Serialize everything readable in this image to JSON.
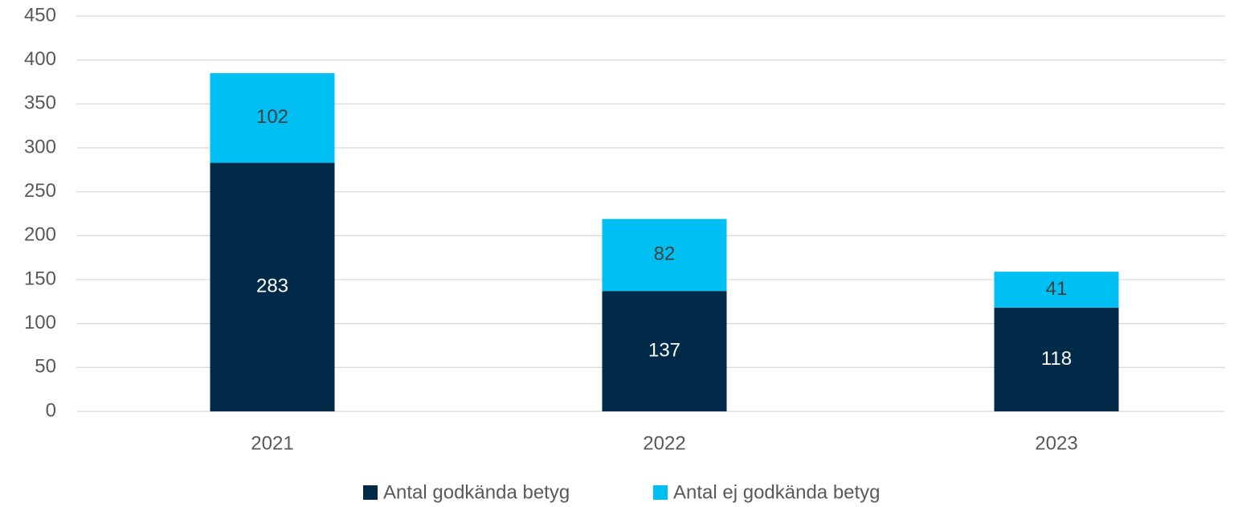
{
  "chart_data": {
    "type": "stacked_bar",
    "categories": [
      "2021",
      "2022",
      "2023"
    ],
    "series": [
      {
        "name": "Antal godkända betyg",
        "color": "#002a48",
        "values": [
          283,
          137,
          118
        ]
      },
      {
        "name": "Antal ej godkända betyg",
        "color": "#00bff3",
        "values": [
          102,
          82,
          41
        ]
      }
    ],
    "ylim": [
      0,
      450
    ],
    "yticks": [
      0,
      50,
      100,
      150,
      200,
      250,
      300,
      350,
      400,
      450
    ],
    "grid": true,
    "legend": "bottom"
  }
}
